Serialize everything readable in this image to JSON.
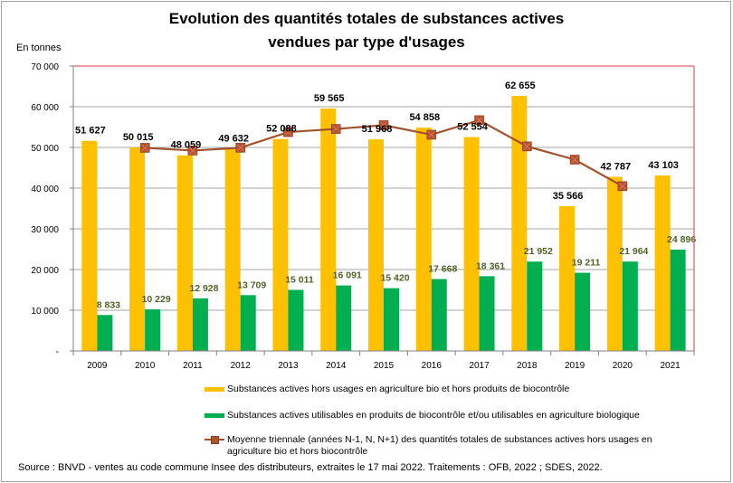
{
  "chart_data": {
    "type": "bar",
    "title": "Evolution des quantités totales de substances actives vendues par type d'usages",
    "title_lines": [
      "Evolution des quantités totales de substances actives",
      "vendues par type d'usages"
    ],
    "ylabel": "En tonnes",
    "xlabel": "",
    "ylim": [
      0,
      70000
    ],
    "yticks": [
      0,
      10000,
      20000,
      30000,
      40000,
      50000,
      60000,
      70000
    ],
    "ytick_labels": [
      "-",
      "10 000",
      "20 000",
      "30 000",
      "40 000",
      "50 000",
      "60 000",
      "70 000"
    ],
    "grid": true,
    "legend_position": "bottom",
    "categories": [
      "2009",
      "2010",
      "2011",
      "2012",
      "2013",
      "2014",
      "2015",
      "2016",
      "2017",
      "2018",
      "2019",
      "2020",
      "2021"
    ],
    "series": [
      {
        "name": "Substances actives hors usages en agriculture bio et hors produits de biocontrôle",
        "type": "bar",
        "color": "#ffc000",
        "values": [
          51627,
          50015,
          48059,
          49632,
          52088,
          59565,
          51968,
          54858,
          52554,
          62655,
          35566,
          42787,
          43103
        ],
        "labels": [
          "51 627",
          "50 015",
          "48 059",
          "49 632",
          "52 088",
          "59 565",
          "51 968",
          "54 858",
          "52 554",
          "62 655",
          "35 566",
          "42 787",
          "43 103"
        ]
      },
      {
        "name": "Substances actives utilisables en  produits de biocontrôle et/ou utilisables en agriculture biologique",
        "type": "bar",
        "color": "#00b050",
        "values": [
          8833,
          10229,
          12928,
          13709,
          15011,
          16091,
          15420,
          17668,
          18361,
          21952,
          19211,
          21964,
          24896
        ],
        "labels": [
          "8 833",
          "10 229",
          "12 928",
          "13 709",
          "15 011",
          "16 091",
          "15 420",
          "17 668",
          "18 361",
          "21 952",
          "19 211",
          "21 964",
          "24 896"
        ]
      },
      {
        "name": "Moyenne triennale (années N-1, N, N+1) des quantités totales de substances actives hors usages en agriculture bio et hors biocontrôle",
        "type": "line",
        "color": "#a0522d",
        "values": [
          null,
          49900,
          49235,
          49926,
          53762,
          54540,
          55464,
          53127,
          56689,
          50258,
          47003,
          40485,
          null
        ]
      }
    ],
    "source": "Source : BNVD - ventes au code commune Insee des distributeurs, extraites le 17 mai 2022. Traitements : OFB, 2022 ; SDES, 2022."
  },
  "legend": {
    "items": [
      "Substances actives hors usages en agriculture bio et hors produits de biocontrôle",
      "Substances actives utilisables en  produits de biocontrôle et/ou utilisables en agriculture biologique",
      "Moyenne triennale (années N-1, N, N+1) des quantités totales de substances actives hors usages en agriculture bio et hors biocontrôle"
    ]
  },
  "colors": {
    "bar_yellow": "#ffc000",
    "bar_green": "#00b050",
    "line_brown": "#a0522d",
    "marker_fill": "#b5522a",
    "green_label": "#4f6228",
    "plot_border": "#e06666",
    "grid": "#a6a6a6"
  }
}
